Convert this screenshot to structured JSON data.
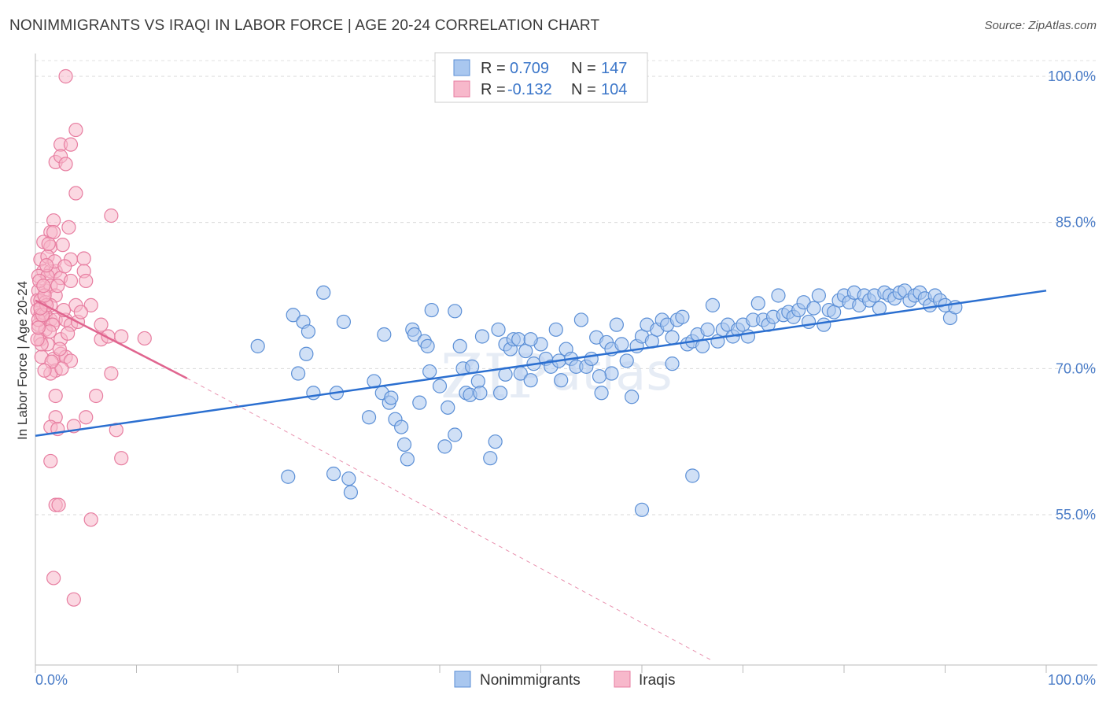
{
  "header": {
    "title": "NONIMMIGRANTS VS IRAQI IN LABOR FORCE | AGE 20-24 CORRELATION CHART",
    "source": "Source: ZipAtlas.com"
  },
  "chart_data": {
    "type": "scatter",
    "title": "NONIMMIGRANTS VS IRAQI IN LABOR FORCE | AGE 20-24 CORRELATION CHART",
    "xlabel": "",
    "ylabel": "In Labor Force | Age 20-24",
    "xlim": [
      0,
      100
    ],
    "ylim": [
      40,
      102
    ],
    "x_tick_labels": [
      "0.0%",
      "100.0%"
    ],
    "y_ticks": [
      55,
      70,
      85,
      100
    ],
    "y_tick_labels": [
      "55.0%",
      "70.0%",
      "85.0%",
      "100.0%"
    ],
    "grid": true,
    "legend_position": "top-center",
    "watermark": "ZIPatlas",
    "stats_legend": [
      {
        "r_label": "R =",
        "r_value": "0.709",
        "n_label": "N =",
        "n_value": "147"
      },
      {
        "r_label": "R =",
        "r_value": "-0.132",
        "n_label": "N =",
        "n_value": "104"
      }
    ],
    "colors": {
      "blue_fill": "#a9c7ef",
      "blue_stroke": "#5b8fd6",
      "blue_line": "#2b6fd0",
      "pink_fill": "#f7b8cb",
      "pink_stroke": "#e77da0",
      "pink_line": "#e0658f"
    },
    "series": [
      {
        "name": "Nonimmigrants",
        "color": "blue",
        "trend": {
          "x": [
            0,
            100
          ],
          "y": [
            63.1,
            78.0
          ]
        },
        "points": [
          [
            22,
            72.3
          ],
          [
            25,
            58.9
          ],
          [
            25.5,
            75.5
          ],
          [
            26,
            69.5
          ],
          [
            26.5,
            74.8
          ],
          [
            26.8,
            71.5
          ],
          [
            27,
            73.8
          ],
          [
            27.5,
            67.5
          ],
          [
            28.5,
            77.8
          ],
          [
            29.5,
            59.2
          ],
          [
            29.8,
            67.5
          ],
          [
            30.5,
            74.8
          ],
          [
            31,
            58.7
          ],
          [
            31.2,
            57.3
          ],
          [
            33,
            65
          ],
          [
            33.5,
            68.7
          ],
          [
            34.3,
            67.5
          ],
          [
            34.5,
            73.5
          ],
          [
            35,
            66.5
          ],
          [
            35.2,
            67
          ],
          [
            35.6,
            64.8
          ],
          [
            36.2,
            64
          ],
          [
            36.5,
            62.2
          ],
          [
            36.8,
            60.7
          ],
          [
            37.3,
            74
          ],
          [
            37.5,
            73.5
          ],
          [
            38,
            66.5
          ],
          [
            38.5,
            72.8
          ],
          [
            38.8,
            72.3
          ],
          [
            39,
            69.7
          ],
          [
            39.2,
            76
          ],
          [
            40,
            68.2
          ],
          [
            40.5,
            62
          ],
          [
            40.8,
            66
          ],
          [
            41.5,
            63.2
          ],
          [
            42,
            72.3
          ],
          [
            42.3,
            70
          ],
          [
            42.6,
            67.5
          ],
          [
            43,
            67.3
          ],
          [
            43.2,
            70.2
          ],
          [
            43.8,
            68.7
          ],
          [
            44,
            67.5
          ],
          [
            45,
            60.8
          ],
          [
            45.5,
            62.5
          ],
          [
            45.8,
            74
          ],
          [
            46,
            67.5
          ],
          [
            46.5,
            72.5
          ],
          [
            47,
            72
          ],
          [
            47.3,
            73
          ],
          [
            47.8,
            73
          ],
          [
            48,
            69.5
          ],
          [
            48.5,
            71.8
          ],
          [
            49,
            68.8
          ],
          [
            49.3,
            70.5
          ],
          [
            50,
            72.5
          ],
          [
            50.5,
            71
          ],
          [
            51,
            70.2
          ],
          [
            51.5,
            74
          ],
          [
            51.8,
            70.8
          ],
          [
            52.5,
            72
          ],
          [
            53,
            71
          ],
          [
            53.5,
            70.2
          ],
          [
            54,
            75
          ],
          [
            54.5,
            70.2
          ],
          [
            55,
            71
          ],
          [
            55.5,
            73.2
          ],
          [
            56,
            67.5
          ],
          [
            56.5,
            72.7
          ],
          [
            57,
            72
          ],
          [
            57.5,
            74.5
          ],
          [
            58,
            72.5
          ],
          [
            58.5,
            70.8
          ],
          [
            59,
            67.1
          ],
          [
            59.5,
            72.3
          ],
          [
            60,
            73.3
          ],
          [
            60.5,
            74.5
          ],
          [
            61,
            72.8
          ],
          [
            61.5,
            74
          ],
          [
            62,
            75
          ],
          [
            62.5,
            74.5
          ],
          [
            63,
            73.2
          ],
          [
            63.5,
            75
          ],
          [
            64,
            75.3
          ],
          [
            64.5,
            72.5
          ],
          [
            65,
            72.8
          ],
          [
            65.5,
            73.5
          ],
          [
            66,
            72.3
          ],
          [
            66.5,
            74
          ],
          [
            67,
            76.5
          ],
          [
            67.5,
            72.8
          ],
          [
            68,
            74
          ],
          [
            68.5,
            74.5
          ],
          [
            69,
            73.3
          ],
          [
            69.5,
            74
          ],
          [
            70,
            74.5
          ],
          [
            70.5,
            73.3
          ],
          [
            71,
            75
          ],
          [
            71.5,
            76.7
          ],
          [
            72,
            75
          ],
          [
            72.5,
            74.5
          ],
          [
            73,
            75.3
          ],
          [
            73.5,
            77.5
          ],
          [
            74,
            75.5
          ],
          [
            74.5,
            75.8
          ],
          [
            75,
            75.3
          ],
          [
            75.5,
            76
          ],
          [
            76,
            76.8
          ],
          [
            76.5,
            74.8
          ],
          [
            77,
            76.2
          ],
          [
            77.5,
            77.5
          ],
          [
            78,
            74.5
          ],
          [
            78.5,
            76
          ],
          [
            79,
            75.8
          ],
          [
            79.5,
            77
          ],
          [
            80,
            77.5
          ],
          [
            80.5,
            76.8
          ],
          [
            81,
            77.8
          ],
          [
            81.5,
            76.5
          ],
          [
            82,
            77.5
          ],
          [
            82.5,
            77
          ],
          [
            83,
            77.5
          ],
          [
            83.5,
            76.2
          ],
          [
            84,
            77.8
          ],
          [
            84.5,
            77.5
          ],
          [
            85,
            77.2
          ],
          [
            85.5,
            77.8
          ],
          [
            86,
            78
          ],
          [
            86.5,
            77
          ],
          [
            87,
            77.5
          ],
          [
            87.5,
            77.8
          ],
          [
            88,
            77.2
          ],
          [
            88.5,
            76.5
          ],
          [
            89,
            77.5
          ],
          [
            89.5,
            77
          ],
          [
            90,
            76.5
          ],
          [
            90.5,
            75.2
          ],
          [
            91,
            76.3
          ],
          [
            65,
            59
          ],
          [
            60,
            55.5
          ],
          [
            57,
            69.5
          ],
          [
            63,
            70.5
          ],
          [
            52,
            68.8
          ],
          [
            49,
            73
          ],
          [
            46.5,
            69.4
          ],
          [
            44.2,
            73.3
          ],
          [
            41.5,
            75.9
          ],
          [
            55.8,
            69.2
          ]
        ]
      },
      {
        "name": "Iraqis",
        "color": "pink",
        "trend": {
          "x": [
            0,
            15
          ],
          "y": [
            77.0,
            69.0
          ],
          "dashed_to": {
            "x": 67,
            "y": 40
          }
        },
        "points": [
          [
            3,
            100
          ],
          [
            4,
            94.5
          ],
          [
            2.5,
            93
          ],
          [
            3.5,
            93
          ],
          [
            2,
            91.2
          ],
          [
            2.5,
            91.8
          ],
          [
            3,
            91
          ],
          [
            4,
            88
          ],
          [
            7.5,
            85.7
          ],
          [
            1.8,
            85.2
          ],
          [
            1.5,
            84
          ],
          [
            1.8,
            84
          ],
          [
            0.8,
            83
          ],
          [
            1.5,
            82.5
          ],
          [
            0.5,
            81.2
          ],
          [
            1.2,
            81.5
          ],
          [
            3.5,
            81.2
          ],
          [
            4.8,
            81.3
          ],
          [
            0.8,
            80
          ],
          [
            1.5,
            80
          ],
          [
            2,
            80
          ],
          [
            4.8,
            80
          ],
          [
            0.3,
            79.5
          ],
          [
            1.2,
            79.5
          ],
          [
            2.5,
            79.3
          ],
          [
            3.5,
            79
          ],
          [
            5,
            79
          ],
          [
            0.3,
            78
          ],
          [
            1,
            78
          ],
          [
            1.5,
            78.5
          ],
          [
            2,
            77.5
          ],
          [
            0.2,
            77
          ],
          [
            0.5,
            77
          ],
          [
            1,
            76.8
          ],
          [
            1.5,
            76.5
          ],
          [
            4,
            76.5
          ],
          [
            5.5,
            76.5
          ],
          [
            0.2,
            76
          ],
          [
            0.5,
            75.5
          ],
          [
            1,
            75.5
          ],
          [
            1.5,
            75
          ],
          [
            2,
            75
          ],
          [
            3,
            75
          ],
          [
            0.3,
            74.5
          ],
          [
            1,
            74
          ],
          [
            3.5,
            74.5
          ],
          [
            6.5,
            74.5
          ],
          [
            0.5,
            73
          ],
          [
            2.5,
            73
          ],
          [
            6.5,
            73
          ],
          [
            1.2,
            72.5
          ],
          [
            2.5,
            71.5
          ],
          [
            8.5,
            73.3
          ],
          [
            7.2,
            73.3
          ],
          [
            10.8,
            73.1
          ],
          [
            0.6,
            71.2
          ],
          [
            1.8,
            71
          ],
          [
            3,
            71.2
          ],
          [
            3.5,
            70.8
          ],
          [
            2,
            69.8
          ],
          [
            1.5,
            69.5
          ],
          [
            7.5,
            69.5
          ],
          [
            2,
            67.2
          ],
          [
            6,
            67.2
          ],
          [
            2,
            65
          ],
          [
            5,
            65
          ],
          [
            3.8,
            64.1
          ],
          [
            1.5,
            64
          ],
          [
            2.2,
            63.8
          ],
          [
            8,
            63.7
          ],
          [
            1.5,
            60.5
          ],
          [
            8.5,
            60.8
          ],
          [
            2,
            56
          ],
          [
            2.3,
            56
          ],
          [
            5.5,
            54.5
          ],
          [
            1.8,
            48.5
          ],
          [
            3.8,
            46.3
          ],
          [
            0.3,
            75
          ],
          [
            0.7,
            75.5
          ],
          [
            1.1,
            76.5
          ],
          [
            0.9,
            77.5
          ],
          [
            0.4,
            79
          ],
          [
            2.2,
            78.5
          ],
          [
            1.7,
            74.5
          ],
          [
            2.8,
            76
          ],
          [
            3.2,
            73.6
          ],
          [
            0.6,
            72.5
          ],
          [
            1.4,
            73.8
          ],
          [
            2.6,
            70
          ],
          [
            0.2,
            73
          ],
          [
            1.9,
            81
          ],
          [
            2.7,
            82.7
          ],
          [
            1.3,
            82.8
          ],
          [
            0.8,
            78.5
          ],
          [
            3.3,
            84.5
          ],
          [
            2.4,
            72
          ],
          [
            1.6,
            70.7
          ],
          [
            0.9,
            69.8
          ],
          [
            4.2,
            74.8
          ],
          [
            2.9,
            80.5
          ],
          [
            1.1,
            80.6
          ],
          [
            0.5,
            76.2
          ],
          [
            0.3,
            74.2
          ],
          [
            4.5,
            75.8
          ]
        ]
      }
    ]
  },
  "legend": {
    "items": [
      "Nonimmigrants",
      "Iraqis"
    ]
  }
}
